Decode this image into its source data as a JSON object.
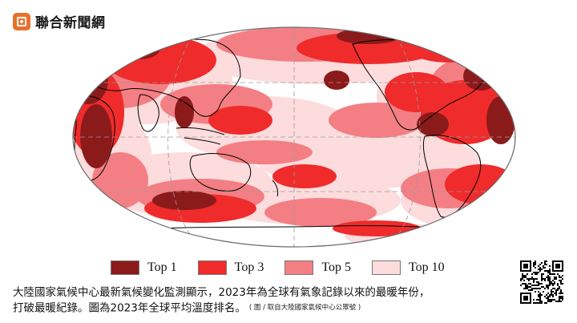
{
  "brand": {
    "name": "聯合新聞網"
  },
  "legend": [
    {
      "label": "Top 1",
      "color": "#8b1a1a"
    },
    {
      "label": "Top 3",
      "color": "#ef2b2b"
    },
    {
      "label": "Top 5",
      "color": "#f37f84"
    },
    {
      "label": "Top 10",
      "color": "#fcdcdc"
    }
  ],
  "caption": {
    "line1": "大陸國家氣候中心最新氣候變化監測顯示，2023年為全球有氣象記錄以來的最暖年份，",
    "line2": "打破最暖紀錄。圖為2023年全球平均溫度排名。",
    "credit": "( 圖 / 取自大陸國家氣候中心公眾號 )"
  },
  "map_data": {
    "projection": "Robinson, Pacific-centered",
    "colors": {
      "top1": "#8b1a1a",
      "top3": "#ef2b2b",
      "top5": "#f37f84",
      "top10": "#fcdcdc",
      "coast": "#000000",
      "grid": "#9a9a9a"
    }
  }
}
